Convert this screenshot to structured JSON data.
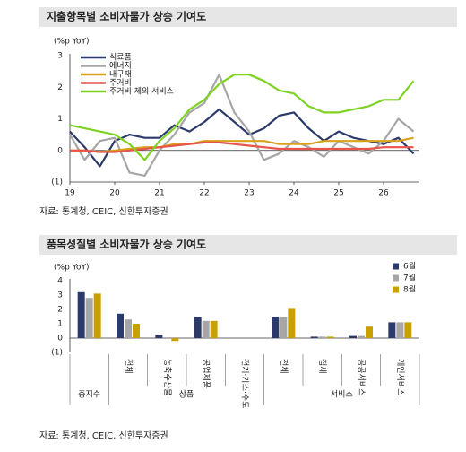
{
  "chart_data": [
    {
      "type": "line",
      "title": "지출항목별 소비자물가 상승 기여도",
      "y_label": "(%p YoY)",
      "x": [
        2019,
        2019.33,
        2019.67,
        2020,
        2020.33,
        2020.67,
        2021,
        2021.33,
        2021.67,
        2022,
        2022.33,
        2022.67,
        2023,
        2023.33,
        2023.67,
        2024,
        2024.33,
        2024.67,
        2025,
        2025.33,
        2025.67,
        2026,
        2026.33,
        2026.67
      ],
      "xlim": [
        2019,
        2026.8
      ],
      "xticks": [
        {
          "value": 2019,
          "label": "19"
        },
        {
          "value": 2020,
          "label": "20"
        },
        {
          "value": 2021,
          "label": "21"
        },
        {
          "value": 2022,
          "label": "22"
        },
        {
          "value": 2023,
          "label": "23"
        },
        {
          "value": 2024,
          "label": "24"
        },
        {
          "value": 2025,
          "label": "25"
        },
        {
          "value": 2026,
          "label": "26"
        }
      ],
      "ylim": [
        -1,
        3
      ],
      "yticks": [
        {
          "value": -1,
          "label": "(1)"
        },
        0,
        1,
        2,
        3
      ],
      "series": [
        {
          "name": "식료품",
          "color": "#2b3a6b",
          "values": [
            0.6,
            0.1,
            -0.5,
            0.3,
            0.5,
            0.4,
            0.4,
            0.8,
            0.6,
            0.9,
            1.3,
            0.9,
            0.5,
            0.7,
            1.1,
            1.2,
            0.7,
            0.3,
            0.6,
            0.4,
            0.3,
            0.2,
            0.4,
            -0.1
          ]
        },
        {
          "name": "에너지",
          "color": "#a6a6a6",
          "values": [
            0.5,
            -0.3,
            0.3,
            0.4,
            -0.7,
            -0.8,
            0.0,
            0.5,
            1.2,
            1.5,
            2.4,
            1.2,
            0.6,
            -0.3,
            -0.1,
            0.3,
            0.1,
            -0.2,
            0.3,
            0.1,
            -0.1,
            0.3,
            1.0,
            0.6
          ]
        },
        {
          "name": "내구재",
          "color": "#d9a21b",
          "values": [
            0.0,
            0.0,
            -0.05,
            0.0,
            0.05,
            0.1,
            0.1,
            0.2,
            0.2,
            0.3,
            0.3,
            0.3,
            0.3,
            0.3,
            0.2,
            0.2,
            0.2,
            0.3,
            0.3,
            0.3,
            0.3,
            0.3,
            0.3,
            0.4
          ]
        },
        {
          "name": "주거비",
          "color": "#e8534a",
          "values": [
            0.0,
            0.0,
            -0.05,
            -0.05,
            0.0,
            0.05,
            0.1,
            0.15,
            0.2,
            0.25,
            0.25,
            0.2,
            0.15,
            0.1,
            0.05,
            0.05,
            0.05,
            0.05,
            0.05,
            0.05,
            0.05,
            0.1,
            0.1,
            0.1
          ]
        },
        {
          "name": "주거비 제외 서비스",
          "color": "#7ed321",
          "values": [
            0.8,
            0.7,
            0.6,
            0.5,
            0.2,
            -0.3,
            0.3,
            0.7,
            1.3,
            1.6,
            2.1,
            2.4,
            2.4,
            2.2,
            1.9,
            1.8,
            1.4,
            1.2,
            1.2,
            1.3,
            1.4,
            1.6,
            1.6,
            2.2
          ]
        }
      ],
      "source": "자료: 통계청, CEIC, 신한투자증권"
    },
    {
      "type": "bar",
      "title": "품목성질별 소비자물가 상승 기여도",
      "y_label": "(%p YoY)",
      "categories": [
        "총지수",
        "전체",
        "농축수산물",
        "공업제품",
        "전기·가스·수도",
        "전체",
        "집세",
        "공공서비스",
        "개인서비스"
      ],
      "group_labels": [
        "상품",
        "서비스"
      ],
      "ylim": [
        -1,
        4
      ],
      "yticks": [
        {
          "value": -1,
          "label": "(1)"
        },
        0,
        1,
        2,
        3,
        4
      ],
      "series": [
        {
          "name": "6월",
          "color": "#2b3a6b",
          "values": [
            3.2,
            1.7,
            0.2,
            1.5,
            0,
            1.5,
            0.1,
            0.15,
            1.1
          ]
        },
        {
          "name": "7월",
          "color": "#a6a6a6",
          "values": [
            2.8,
            1.3,
            0.0,
            1.2,
            0,
            1.5,
            0.1,
            0.15,
            1.1
          ]
        },
        {
          "name": "8월",
          "color": "#c9a000",
          "values": [
            3.1,
            1.0,
            -0.2,
            1.2,
            0,
            2.1,
            0.1,
            0.8,
            1.1
          ]
        }
      ],
      "source": "자료: 통계청, CEIC, 신한투자증권"
    }
  ]
}
